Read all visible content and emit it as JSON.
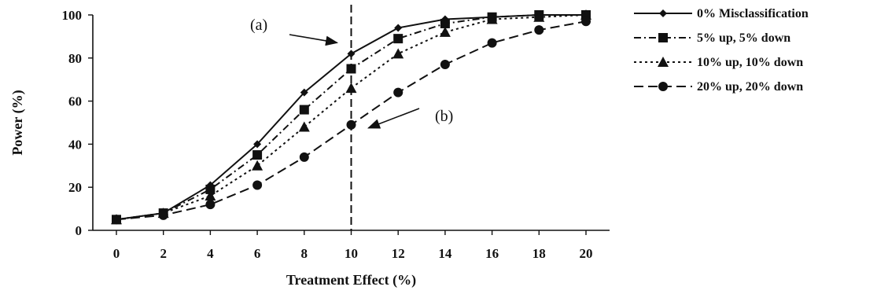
{
  "chart_data": {
    "type": "line",
    "title": "",
    "xlabel": "Treatment Effect (%)",
    "ylabel": "Power (%)",
    "xlim": [
      0,
      20
    ],
    "ylim": [
      0,
      100
    ],
    "x_ticks": [
      0,
      2,
      4,
      6,
      8,
      10,
      12,
      14,
      16,
      18,
      20
    ],
    "y_ticks": [
      0,
      20,
      40,
      60,
      80,
      100
    ],
    "grid": false,
    "legend_position": "right",
    "x": [
      0,
      2,
      4,
      6,
      8,
      10,
      12,
      14,
      16,
      18,
      20
    ],
    "series": [
      {
        "name": "0% Misclassification",
        "marker": "diamond",
        "dash": "solid",
        "values": [
          5,
          8,
          21,
          40,
          64,
          82,
          94,
          98,
          99,
          100,
          100
        ]
      },
      {
        "name": "5% up, 5% down",
        "marker": "square",
        "dash": "dash-dot",
        "values": [
          5,
          8,
          19,
          35,
          56,
          75,
          89,
          96,
          99,
          100,
          100
        ]
      },
      {
        "name": "10% up, 10% down",
        "marker": "triangle",
        "dash": "dotted",
        "values": [
          5,
          8,
          16,
          30,
          48,
          66,
          82,
          92,
          98,
          99,
          100
        ]
      },
      {
        "name": "20% up, 20% down",
        "marker": "circle",
        "dash": "dashed",
        "values": [
          5,
          7,
          12,
          21,
          34,
          49,
          64,
          77,
          87,
          93,
          97
        ]
      }
    ],
    "reference_line": {
      "x": 10,
      "style": "dashed"
    },
    "annotations": [
      {
        "label": "(a)",
        "target_series": 0,
        "target_x": 10
      },
      {
        "label": "(b)",
        "target_series": 3,
        "target_x": 10
      }
    ]
  }
}
